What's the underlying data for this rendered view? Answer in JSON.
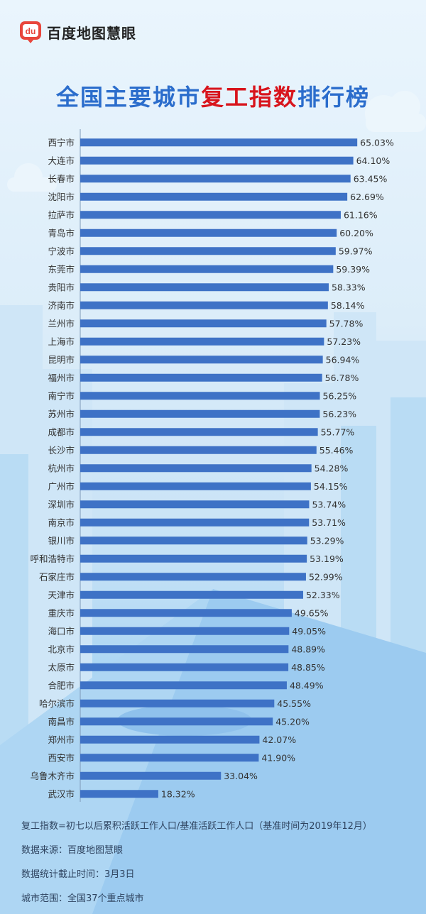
{
  "brand": {
    "name": "百度地图慧眼",
    "logo_text": "du"
  },
  "title": {
    "part1": "全国主要城市",
    "highlight": "复工指数",
    "part2": "排行榜"
  },
  "colors": {
    "bar": "#3e72c6",
    "title": "#2b6dcc",
    "highlight": "#d8141c",
    "text": "#333333"
  },
  "chart_data": {
    "type": "bar",
    "orientation": "horizontal",
    "categories": [
      "西宁市",
      "大连市",
      "长春市",
      "沈阳市",
      "拉萨市",
      "青岛市",
      "宁波市",
      "东莞市",
      "贵阳市",
      "济南市",
      "兰州市",
      "上海市",
      "昆明市",
      "福州市",
      "南宁市",
      "苏州市",
      "成都市",
      "长沙市",
      "杭州市",
      "广州市",
      "深圳市",
      "南京市",
      "银川市",
      "呼和浩特市",
      "石家庄市",
      "天津市",
      "重庆市",
      "海口市",
      "北京市",
      "太原市",
      "合肥市",
      "哈尔滨市",
      "南昌市",
      "郑州市",
      "西安市",
      "乌鲁木齐市",
      "武汉市"
    ],
    "values": [
      65.03,
      64.1,
      63.45,
      62.69,
      61.16,
      60.2,
      59.97,
      59.39,
      58.33,
      58.14,
      57.78,
      57.23,
      56.94,
      56.78,
      56.25,
      56.23,
      55.77,
      55.46,
      54.28,
      54.15,
      53.74,
      53.71,
      53.29,
      53.19,
      52.99,
      52.33,
      49.65,
      49.05,
      48.89,
      48.85,
      48.49,
      45.55,
      45.2,
      42.07,
      41.9,
      33.04,
      18.32
    ],
    "value_labels": [
      "65.03%",
      "64.10%",
      "63.45%",
      "62.69%",
      "61.16%",
      "60.20%",
      "59.97%",
      "59.39%",
      "58.33%",
      "58.14%",
      "57.78%",
      "57.23%",
      "56.94%",
      "56.78%",
      "56.25%",
      "56.23%",
      "55.77%",
      "55.46%",
      "54.28%",
      "54.15%",
      "53.74%",
      "53.71%",
      "53.29%",
      "53.19%",
      "52.99%",
      "52.33%",
      "49.65%",
      "49.05%",
      "48.89%",
      "48.85%",
      "48.49%",
      "45.55%",
      "45.20%",
      "42.07%",
      "41.90%",
      "33.04%",
      "18.32%"
    ],
    "unit": "%",
    "xlim": [
      0,
      70
    ]
  },
  "notes": [
    "复工指数=初七以后累积活跃工作人口/基准活跃工作人口（基准时间为2019年12月）",
    "数据来源：百度地图慧眼",
    "数据统计截止时间：3月3日",
    "城市范围：全国37个重点城市"
  ]
}
